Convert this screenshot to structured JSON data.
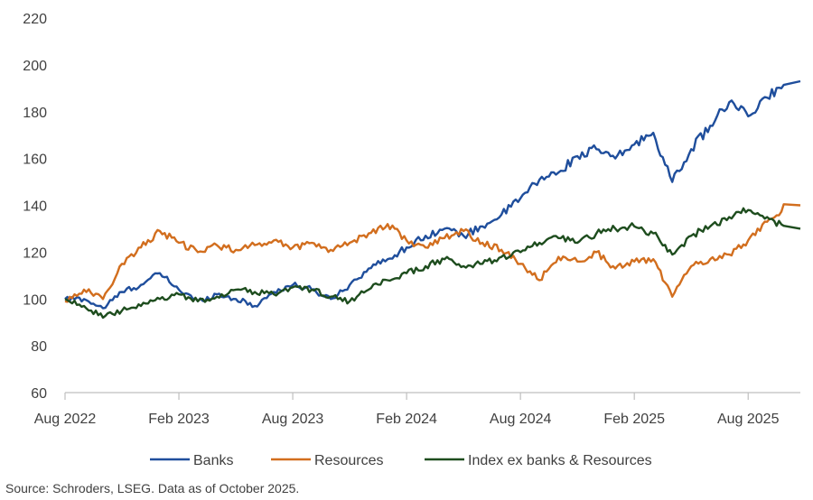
{
  "source_note": "Source: Schroders, LSEG. Data as of October 2025.",
  "colors": {
    "Banks": "#1f4e9c",
    "Resources": "#d26e1e",
    "Index ex banks & Resources": "#1e4d1e",
    "axis": "#bfbfbf",
    "text": "#404040"
  },
  "chart_data": {
    "type": "line",
    "title": "",
    "xlabel": "",
    "ylabel": "",
    "ylim": [
      60,
      220
    ],
    "yticks": [
      60,
      80,
      100,
      120,
      140,
      160,
      180,
      200,
      220
    ],
    "xlim": [
      "2022-08",
      "2025-10"
    ],
    "xticks": [
      "Aug 2022",
      "Feb 2023",
      "Aug 2023",
      "Feb 2024",
      "Aug 2024",
      "Feb 2025",
      "Aug 2025"
    ],
    "grid": false,
    "legend_position": "bottom",
    "x": [
      "2022-08",
      "2022-09",
      "2022-10",
      "2022-11",
      "2022-12",
      "2023-01",
      "2023-02",
      "2023-03",
      "2023-04",
      "2023-05",
      "2023-06",
      "2023-07",
      "2023-08",
      "2023-09",
      "2023-10",
      "2023-11",
      "2023-12",
      "2024-01",
      "2024-02",
      "2024-03",
      "2024-04",
      "2024-05",
      "2024-06",
      "2024-07",
      "2024-08",
      "2024-09",
      "2024-10",
      "2024-11",
      "2024-12",
      "2025-01",
      "2025-02",
      "2025-03",
      "2025-04",
      "2025-05",
      "2025-06",
      "2025-07",
      "2025-08",
      "2025-09",
      "2025-10"
    ],
    "series": [
      {
        "name": "Banks",
        "values": [
          100,
          100,
          96,
          103,
          106,
          111,
          104,
          99,
          102,
          100,
          97,
          103,
          106,
          104,
          100,
          106,
          113,
          117,
          122,
          127,
          130,
          127,
          131,
          136,
          143,
          151,
          154,
          161,
          164,
          160,
          166,
          171,
          150,
          164,
          174,
          184,
          178,
          186,
          193
        ]
      },
      {
        "name": "Resources",
        "values": [
          99,
          104,
          100,
          115,
          122,
          129,
          124,
          120,
          123,
          121,
          123,
          125,
          122,
          124,
          121,
          124,
          128,
          132,
          125,
          122,
          126,
          129,
          124,
          121,
          115,
          108,
          118,
          116,
          120,
          113,
          116,
          117,
          101,
          114,
          117,
          119,
          125,
          133,
          140
        ]
      },
      {
        "name": "Index ex banks & Resources",
        "values": [
          100,
          97,
          92,
          95,
          97,
          100,
          102,
          99,
          101,
          104,
          103,
          102,
          105,
          104,
          101,
          99,
          104,
          108,
          111,
          114,
          117,
          114,
          115,
          118,
          120,
          124,
          126,
          124,
          128,
          130,
          131,
          128,
          119,
          127,
          131,
          135,
          138,
          135,
          130
        ]
      }
    ]
  }
}
